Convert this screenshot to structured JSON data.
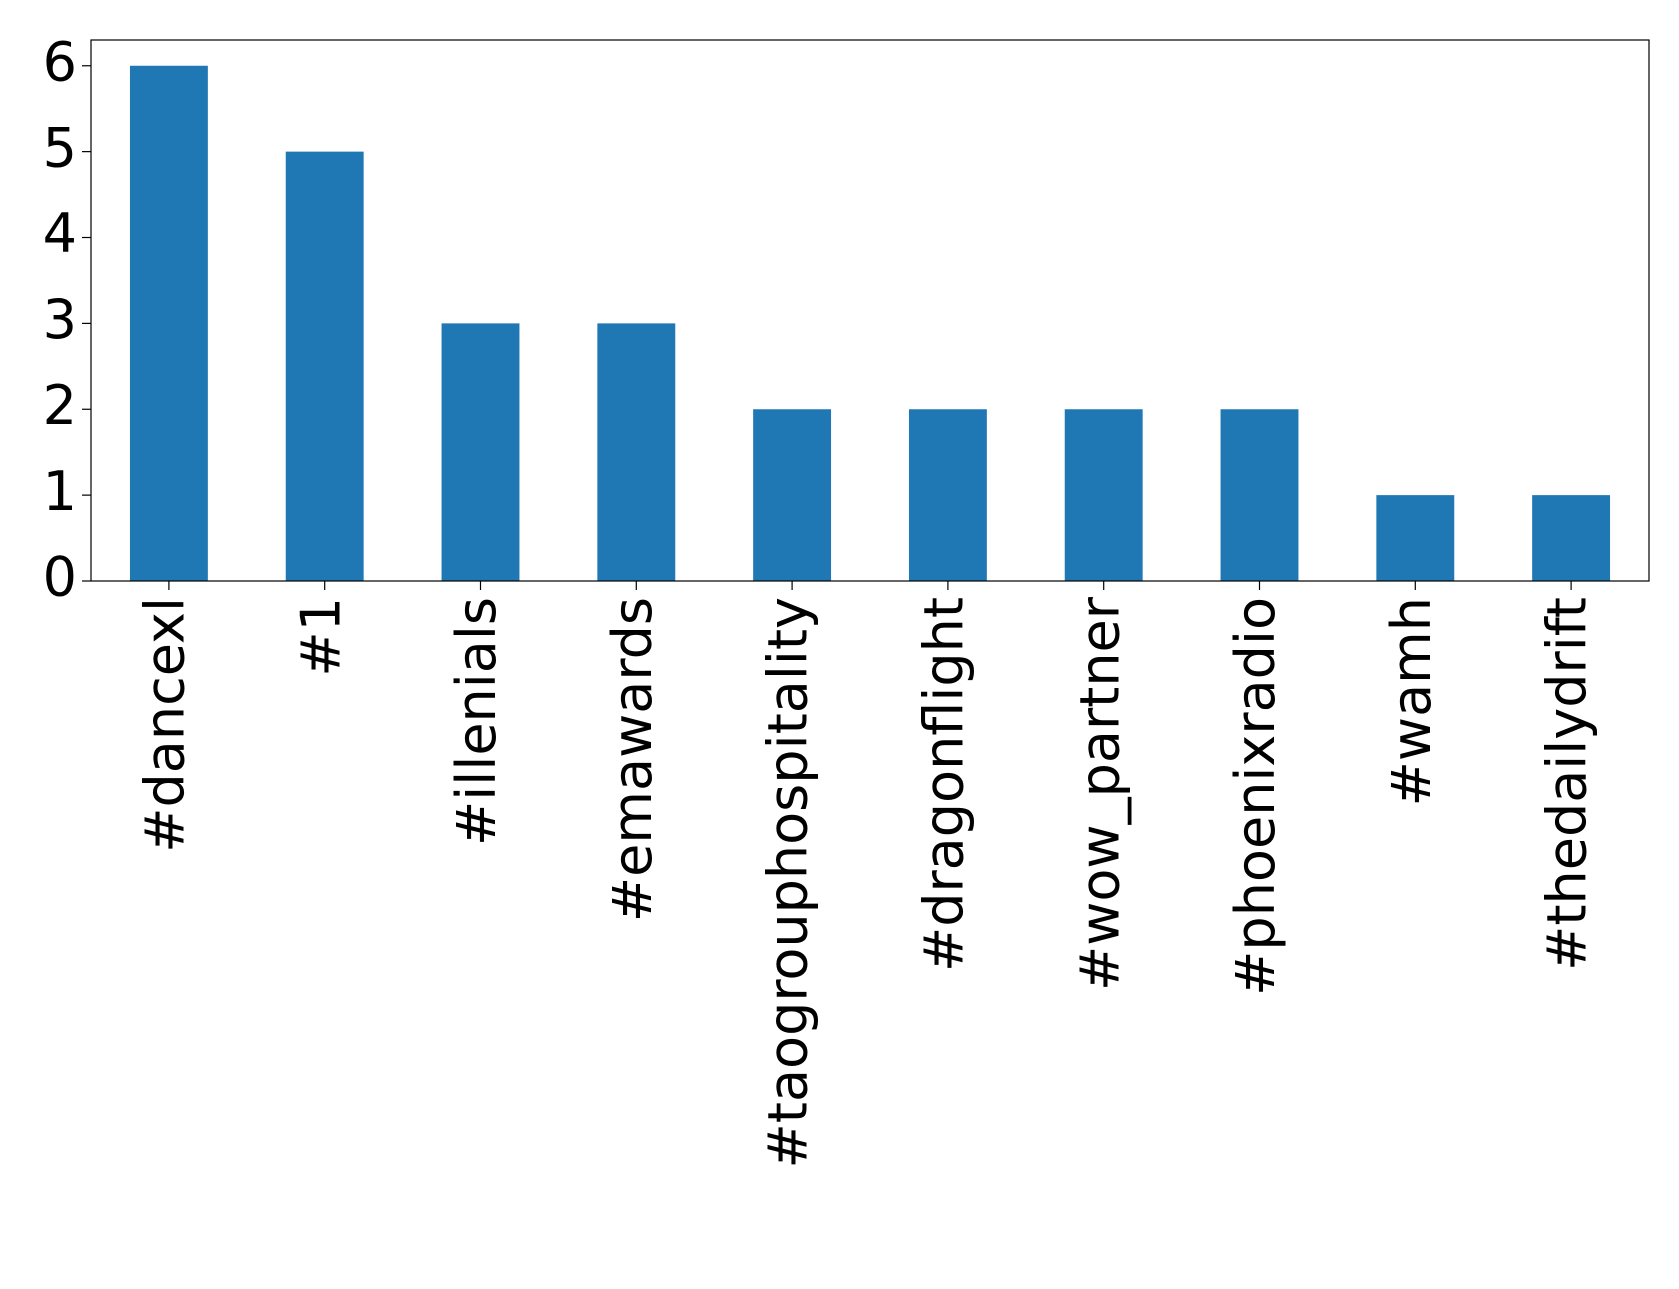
{
  "chart_data": {
    "type": "bar",
    "categories": [
      "#dancexl",
      "#1",
      "#illenials",
      "#emawards",
      "#taogrouphospitality",
      "#dragonflight",
      "#wow_partner",
      "#phoenixradio",
      "#wamh",
      "#thedailydrift"
    ],
    "values": [
      6,
      5,
      3,
      3,
      2,
      2,
      2,
      2,
      1,
      1
    ],
    "color": "#1f77b4",
    "ylim": [
      0,
      6.3
    ],
    "yticks": [
      0,
      1,
      2,
      3,
      4,
      5,
      6
    ],
    "grid": false
  }
}
